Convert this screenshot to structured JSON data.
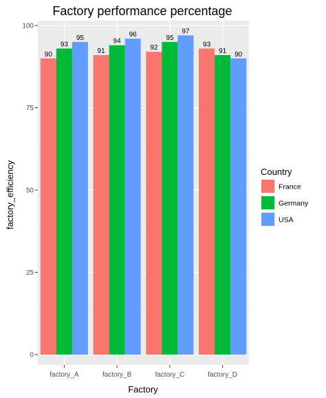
{
  "chart_data": {
    "type": "bar",
    "title": "Factory performance percentage",
    "xlabel": "Factory",
    "ylabel": "factory_efficiency",
    "categories": [
      "factory_A",
      "factory_B",
      "factory_C",
      "factory_D"
    ],
    "series": [
      {
        "name": "France",
        "color": "#F8766D",
        "values": [
          90,
          91,
          92,
          93
        ]
      },
      {
        "name": "Germany",
        "color": "#00BA38",
        "values": [
          93,
          94,
          95,
          91
        ]
      },
      {
        "name": "USA",
        "color": "#619CFF",
        "values": [
          95,
          96,
          97,
          90
        ]
      }
    ],
    "ylim": [
      0,
      100
    ],
    "yticks": [
      0,
      25,
      50,
      75,
      100
    ],
    "grid": true,
    "legend": {
      "title": "Country",
      "position": "right"
    },
    "panel_color": "#EBEBEB"
  }
}
